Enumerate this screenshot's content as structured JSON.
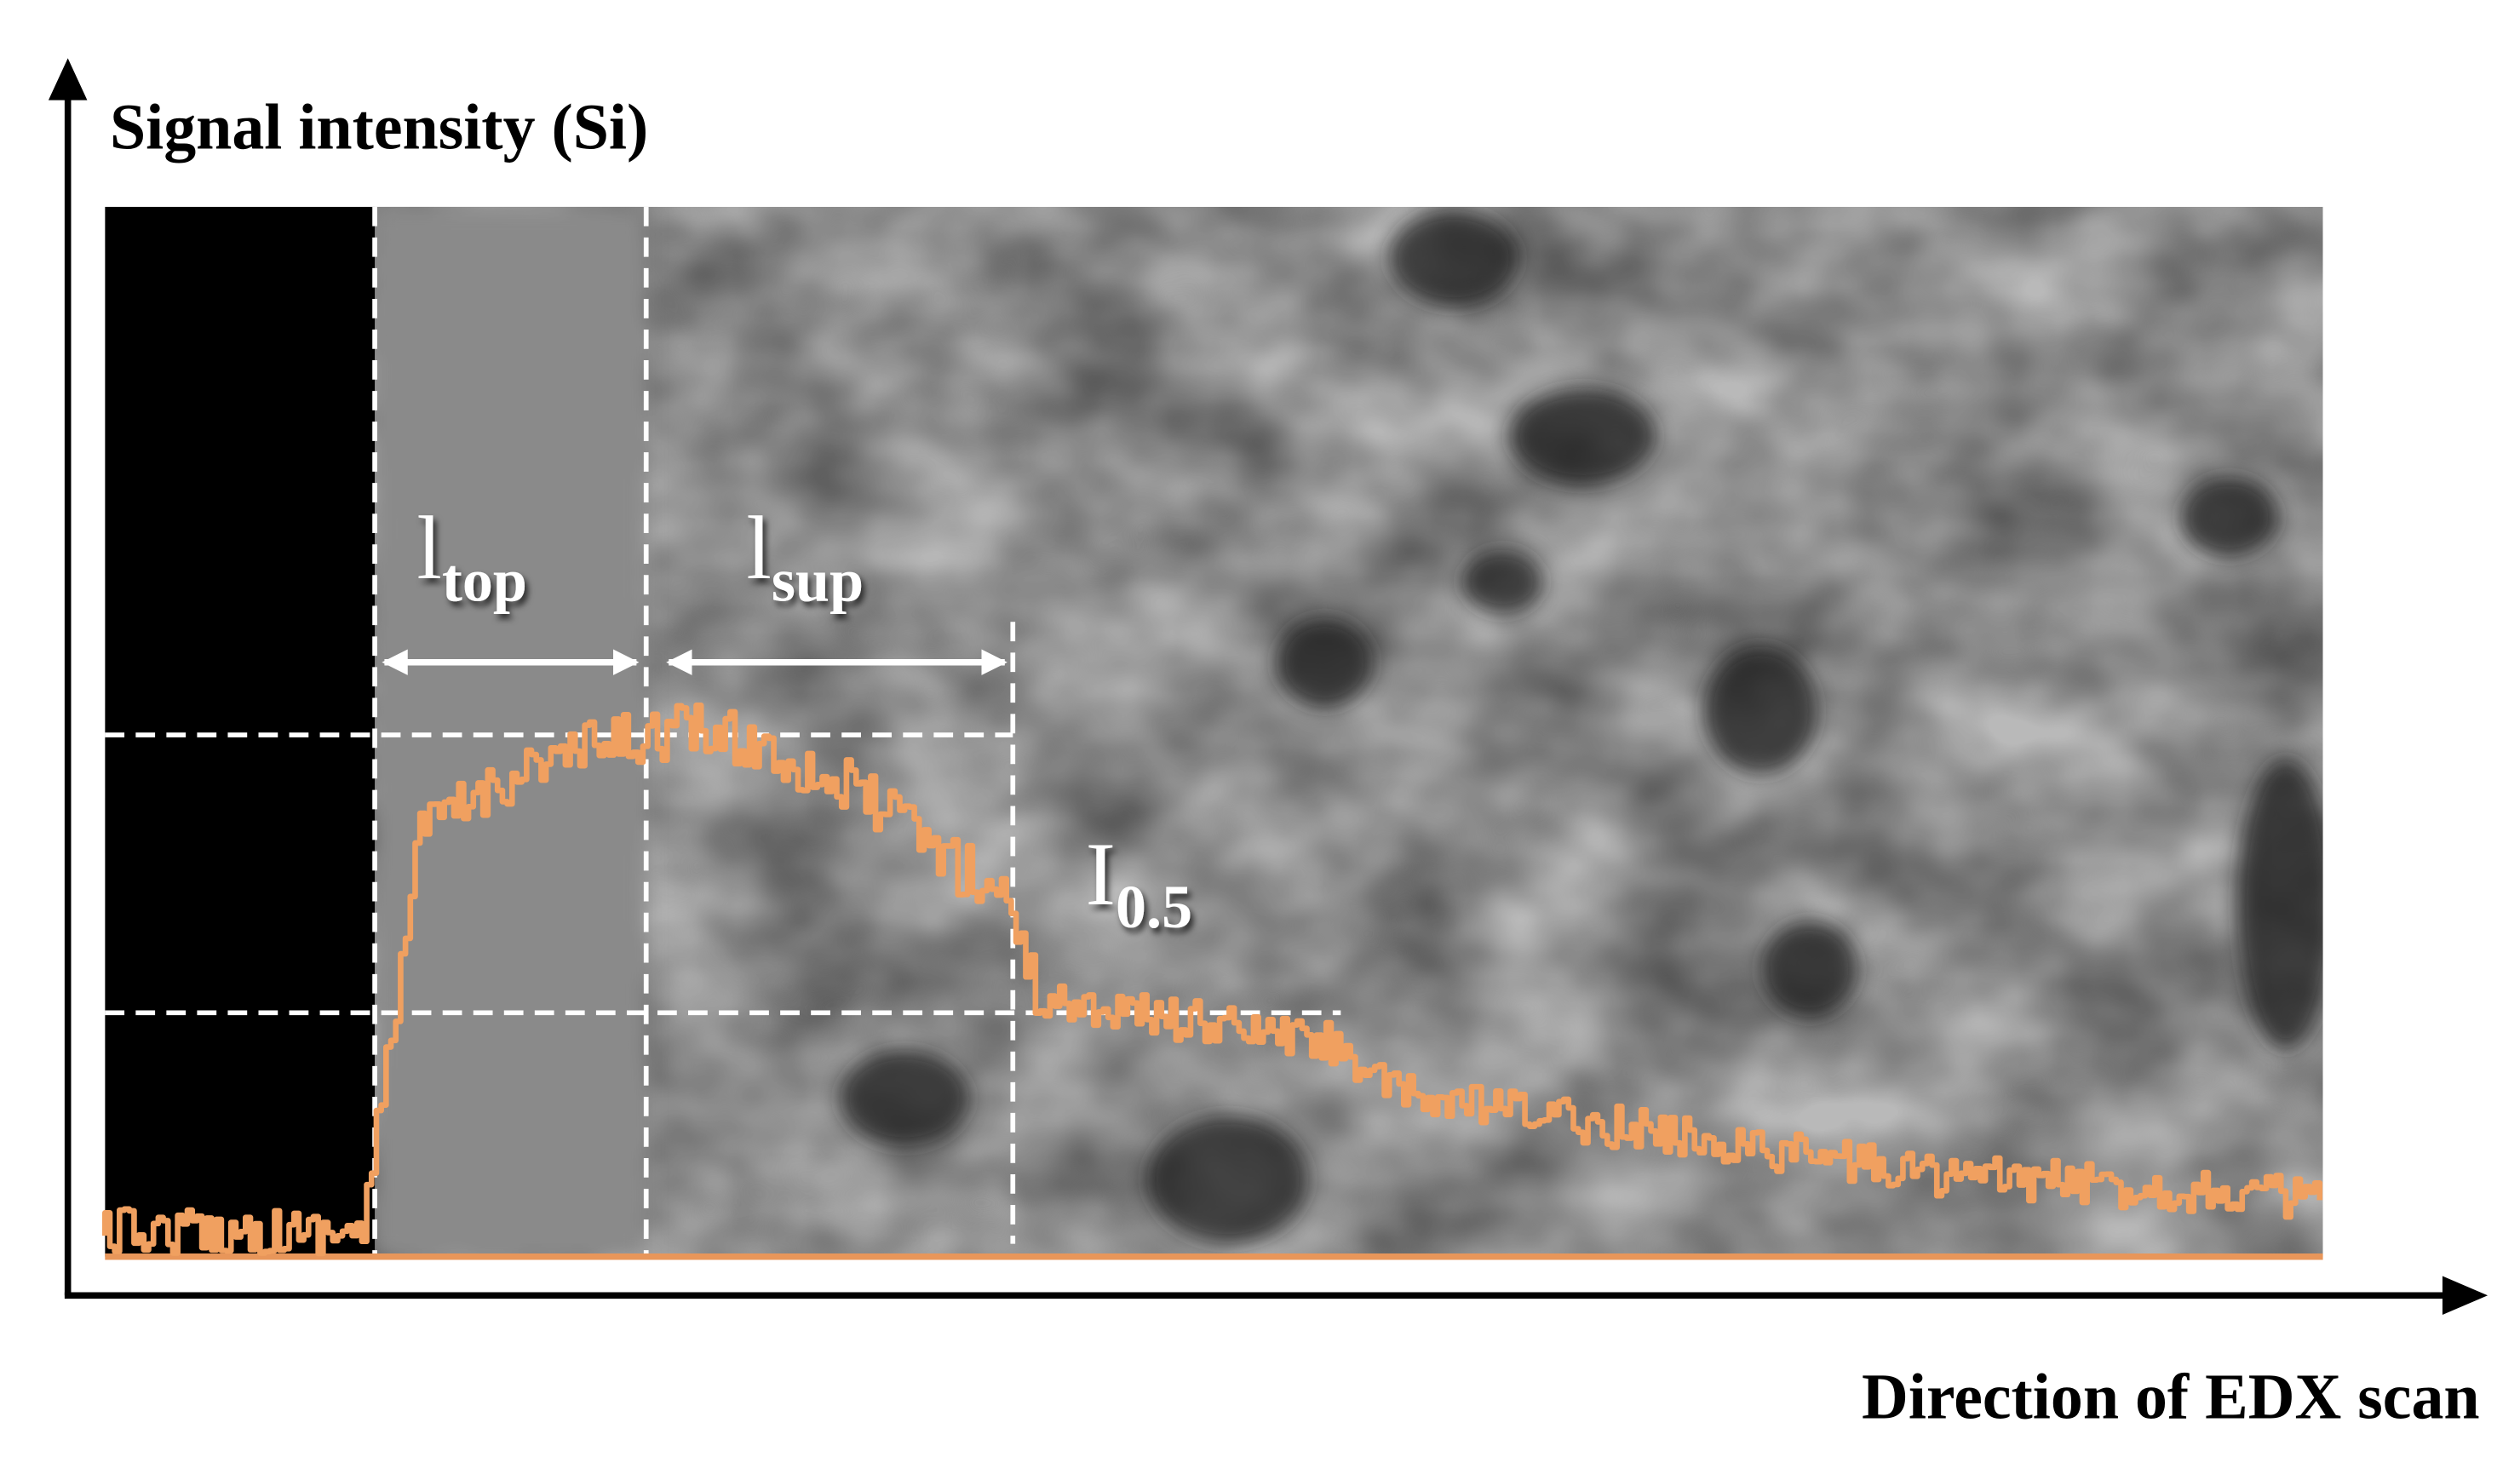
{
  "axes": {
    "y_label": "Signal intensity (Si)",
    "x_label": "Direction of EDX scan"
  },
  "annotations": [
    {
      "main": "l",
      "sub": "top"
    },
    {
      "main": "l",
      "sub": "sup"
    },
    {
      "main": "I",
      "sub": "0.5"
    }
  ]
}
